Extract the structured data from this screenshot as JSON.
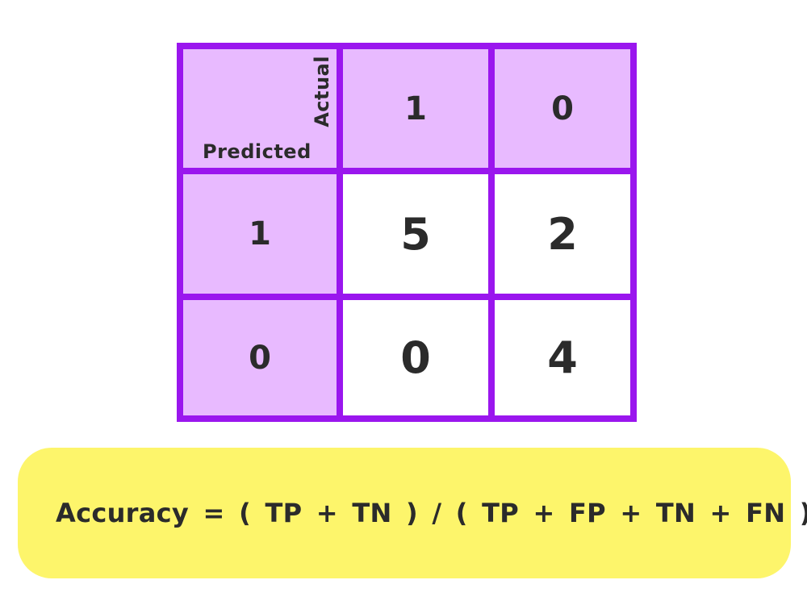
{
  "matrix": {
    "corner": {
      "row_axis_label": "Predicted",
      "col_axis_label": "Actual"
    },
    "col_headers": [
      "1",
      "0"
    ],
    "row_headers": [
      "1",
      "0"
    ],
    "values": [
      [
        "5",
        "2"
      ],
      [
        "0",
        "4"
      ]
    ]
  },
  "formula": {
    "text": "Accuracy = ( TP + TN ) / ( TP + FP + TN + FN )"
  },
  "colors": {
    "grid_border": "#9a16ee",
    "header_fill": "#e8baff",
    "value_fill": "#ffffff",
    "formula_fill": "#fdf56b",
    "text": "#2b2b2b"
  }
}
